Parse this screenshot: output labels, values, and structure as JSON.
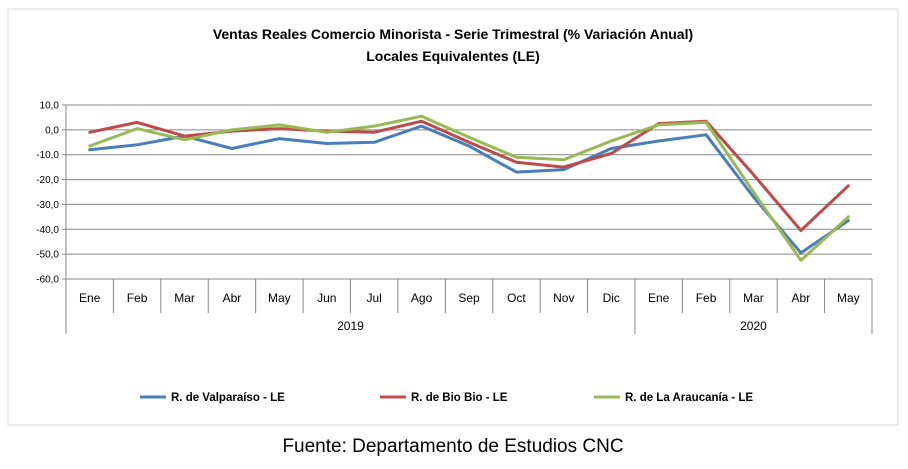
{
  "chart_data": {
    "type": "line",
    "title": "Ventas Reales Comercio Minorista - Serie Trimestral (% Variación Anual)",
    "subtitle": "Locales Equivalentes (LE)",
    "categories": [
      "Ene",
      "Feb",
      "Mar",
      "Abr",
      "May",
      "Jun",
      "Jul",
      "Ago",
      "Sep",
      "Oct",
      "Nov",
      "Dic",
      "Ene",
      "Feb",
      "Mar",
      "Abr",
      "May"
    ],
    "years": [
      {
        "label": "2019",
        "start": 0,
        "end": 11
      },
      {
        "label": "2020",
        "start": 12,
        "end": 16
      }
    ],
    "yticks": [
      "10,0",
      "0,0",
      "-10,0",
      "-20,0",
      "-30,0",
      "-40,0",
      "-50,0",
      "-60,0"
    ],
    "ylim": [
      -60,
      10
    ],
    "grid": true,
    "legend_position": "bottom",
    "series": [
      {
        "name": "R. de Valparaíso - LE",
        "color": "#4a7ebb",
        "values": [
          -8,
          -6,
          -2.5,
          -7.5,
          -3.5,
          -5.5,
          -5,
          1.5,
          -6.5,
          -17,
          -16,
          -7.5,
          -4.5,
          -2,
          -27,
          -49.5,
          -36.5
        ]
      },
      {
        "name": "R. de Bio Bio - LE",
        "color": "#be4b48",
        "values": [
          -1,
          3,
          -2.5,
          -0.5,
          0.5,
          -0.5,
          -1,
          3.5,
          -5,
          -13,
          -15,
          -9.5,
          2.5,
          3.5,
          -18,
          -40.5,
          -22.5
        ]
      },
      {
        "name": "R. de La Araucanía - LE",
        "color": "#98b954",
        "values": [
          -6.5,
          0.5,
          -4,
          0,
          2,
          -1,
          1.5,
          5.5,
          -3,
          -11,
          -12,
          -4.5,
          2,
          3,
          -25,
          -52.5,
          -35
        ]
      }
    ]
  },
  "footer": {
    "source": "Fuente: Departamento de Estudios CNC"
  }
}
